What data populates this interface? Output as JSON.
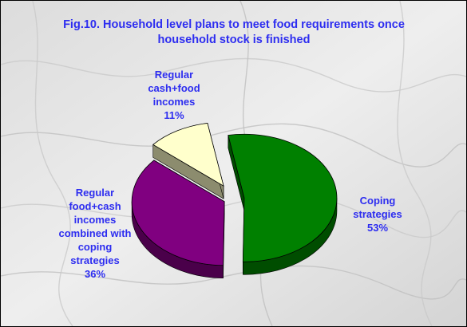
{
  "chart_data": {
    "type": "pie",
    "style": "3d-exploded",
    "title_lines": [
      "Fig.10. Household level plans to meet food requirements once",
      "household stock is finished"
    ],
    "slices": [
      {
        "label_lines": [
          "Coping",
          "strategies"
        ],
        "value_text": "53%",
        "value": 53,
        "color": "#008000",
        "side_color": "#004d00"
      },
      {
        "label_lines": [
          "Regular",
          "food+cash",
          "incomes",
          "combined with",
          "coping",
          "strategies"
        ],
        "value_text": "36%",
        "value": 36,
        "color": "#800080",
        "side_color": "#4a004a"
      },
      {
        "label_lines": [
          "Regular",
          "cash+food",
          "incomes"
        ],
        "value_text": "11%",
        "value": 11,
        "color": "#ffffcc",
        "side_color": "#8c8c6e"
      }
    ],
    "label_color": "#2d2df0",
    "legend": "none"
  }
}
